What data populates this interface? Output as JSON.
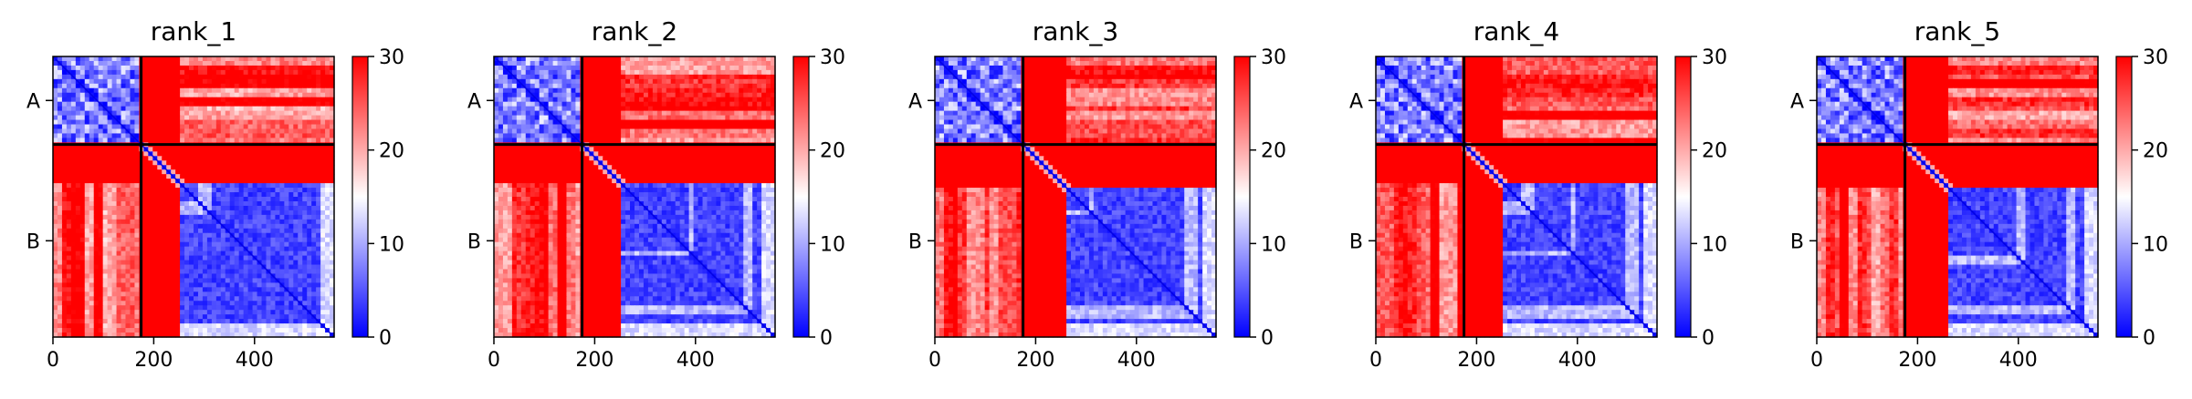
{
  "chart_data": {
    "type": "heatmap",
    "x_ticks": [
      0,
      200,
      400
    ],
    "x_range": [
      0,
      558
    ],
    "chain_boundary": 175,
    "chains": [
      "A",
      "B"
    ],
    "colorbar": {
      "min": 0,
      "max": 30,
      "ticks": [
        0,
        10,
        20,
        30
      ]
    },
    "colormap": {
      "low": "#0000ff",
      "mid": "#ffffff",
      "high": "#ff0000"
    },
    "panels": [
      {
        "title": "rank_1",
        "interface_start": 250
      },
      {
        "title": "rank_2",
        "interface_start": 250
      },
      {
        "title": "rank_3",
        "interface_start": 262
      },
      {
        "title": "rank_4",
        "interface_start": 252
      },
      {
        "title": "rank_5",
        "interface_start": 258
      }
    ]
  }
}
